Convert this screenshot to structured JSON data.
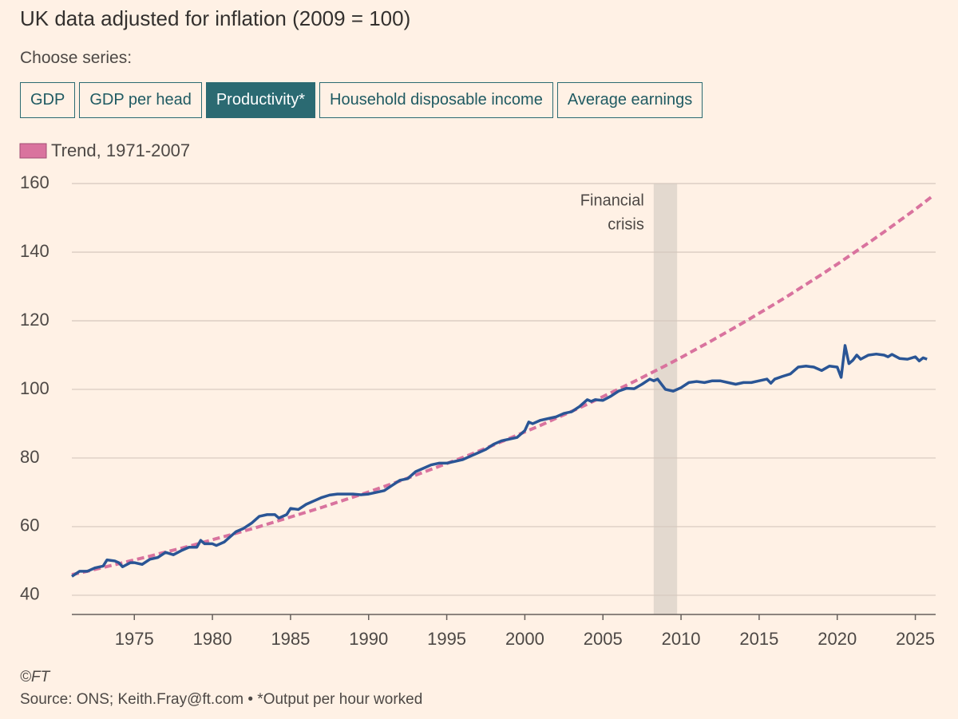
{
  "controls": {
    "label": "Choose series:",
    "options": [
      "GDP",
      "GDP per head",
      "Productivity*",
      "Household disposable income",
      "Average earnings"
    ],
    "selected": 2
  },
  "chart_data": {
    "type": "line",
    "title": "UK data adjusted for inflation (2009 = 100)",
    "xlim": [
      1971,
      2026.3
    ],
    "xticks": [
      1975,
      1980,
      1985,
      1990,
      1995,
      2000,
      2005,
      2010,
      2015,
      2020,
      2025
    ],
    "ylim": [
      34.4,
      160
    ],
    "yticks": [
      40,
      60,
      80,
      100,
      120,
      140,
      160
    ],
    "grid": true,
    "annotation": {
      "lines": [
        "Financial",
        "crisis"
      ],
      "start": 2008.25,
      "end": 2009.75,
      "color": "#e3d9cf"
    },
    "series": [
      {
        "name": "Trend, 1971-2007",
        "color": "#d9739e",
        "dashed": true,
        "x": [
          1971,
          1972,
          1973,
          1974,
          1975,
          1976,
          1977,
          1978,
          1979,
          1980,
          1981,
          1982,
          1983,
          1984,
          1985,
          1986,
          1987,
          1988,
          1989,
          1990,
          1991,
          1992,
          1993,
          1994,
          1995,
          1996,
          1997,
          1998,
          1999,
          2000,
          2001,
          2002,
          2003,
          2004,
          2005,
          2006,
          2007,
          2008,
          2009,
          2010,
          2011,
          2012,
          2013,
          2014,
          2015,
          2016,
          2017,
          2018,
          2019,
          2020,
          2021,
          2022,
          2023,
          2024,
          2025,
          2026
        ],
        "values": [
          46.0,
          47.0,
          48.1,
          49.2,
          50.3,
          51.4,
          52.6,
          53.7,
          54.9,
          56.2,
          57.4,
          58.7,
          60.0,
          61.4,
          62.8,
          64.2,
          65.6,
          67.1,
          68.6,
          70.1,
          71.7,
          73.3,
          75.0,
          76.7,
          78.4,
          80.1,
          81.9,
          83.8,
          85.7,
          87.6,
          89.5,
          91.6,
          93.6,
          95.7,
          97.9,
          100.1,
          102.3,
          104.6,
          106.9,
          109.3,
          111.8,
          114.3,
          116.9,
          119.5,
          122.2,
          124.9,
          127.7,
          130.6,
          133.5,
          136.5,
          139.6,
          142.7,
          145.9,
          149.2,
          152.5,
          156.0
        ]
      },
      {
        "color": "#2a5595",
        "dashed": false,
        "x": [
          1971,
          1971.5,
          1972,
          1972.5,
          1973,
          1973.25,
          1973.75,
          1974,
          1974.25,
          1974.75,
          1975,
          1975.5,
          1976,
          1976.5,
          1977,
          1977.5,
          1978,
          1978.5,
          1979,
          1979.25,
          1979.5,
          1980,
          1980.25,
          1980.75,
          1981,
          1981.5,
          1982,
          1982.5,
          1983,
          1983.5,
          1984,
          1984.25,
          1984.75,
          1985,
          1985.5,
          1986,
          1986.5,
          1987,
          1987.5,
          1988,
          1988.5,
          1989,
          1989.5,
          1990,
          1990.5,
          1991,
          1991.5,
          1992,
          1992.5,
          1993,
          1993.5,
          1994,
          1994.5,
          1995,
          1995.5,
          1996,
          1996.5,
          1997,
          1997.5,
          1998,
          1998.5,
          1999,
          1999.5,
          2000,
          2000.25,
          2000.5,
          2001,
          2001.5,
          2002,
          2002.5,
          2003,
          2003.5,
          2004,
          2004.25,
          2004.5,
          2005,
          2005.5,
          2006,
          2006.5,
          2007,
          2007.5,
          2008,
          2008.25,
          2008.5,
          2008.75,
          2009,
          2009.5,
          2010,
          2010.5,
          2011,
          2011.5,
          2012,
          2012.5,
          2013,
          2013.5,
          2014,
          2014.5,
          2015,
          2015.5,
          2015.75,
          2016,
          2016.5,
          2017,
          2017.5,
          2018,
          2018.5,
          2019,
          2019.5,
          2020,
          2020.25,
          2020.5,
          2020.75,
          2021,
          2021.25,
          2021.5,
          2022,
          2022.5,
          2023,
          2023.25,
          2023.5,
          2024,
          2024.5,
          2025,
          2025.25,
          2025.5,
          2025.75
        ],
        "values": [
          45.5,
          47,
          47,
          48,
          48.5,
          50.3,
          50,
          49.5,
          48.3,
          49.5,
          49.5,
          49,
          50.5,
          51,
          52.5,
          51.8,
          53,
          54,
          54,
          56,
          55,
          55,
          54.5,
          55.5,
          56.5,
          58.5,
          59.5,
          61,
          63,
          63.5,
          63.5,
          62.5,
          63.5,
          65.3,
          65,
          66.5,
          67.5,
          68.5,
          69.2,
          69.5,
          69.5,
          69.5,
          69.3,
          69.5,
          70,
          70.5,
          72,
          73.5,
          74,
          76,
          77,
          78,
          78.5,
          78.5,
          79,
          79.5,
          80.5,
          81.5,
          82.5,
          84,
          85,
          85.5,
          86,
          88,
          90.5,
          90,
          91,
          91.5,
          92,
          93,
          93.5,
          95,
          97,
          96.5,
          97,
          96.8,
          98,
          99.5,
          100.3,
          100.2,
          101.5,
          103,
          102.5,
          103,
          101.5,
          100,
          99.5,
          100.5,
          102,
          102.3,
          102,
          102.5,
          102.5,
          102,
          101.5,
          102,
          102,
          102.5,
          103,
          101.8,
          103,
          103.8,
          104.5,
          106.5,
          106.8,
          106.5,
          105.5,
          106.8,
          106.5,
          103.5,
          112.8,
          107.5,
          108.5,
          110,
          108.8,
          110,
          110.3,
          110,
          109.5,
          110.2,
          109,
          108.8,
          109.5,
          108.3,
          109.2,
          108.8
        ]
      }
    ]
  },
  "footer": {
    "credit": "©FT",
    "source": "Source: ONS; Keith.Fray@ft.com • *Output per hour worked"
  }
}
